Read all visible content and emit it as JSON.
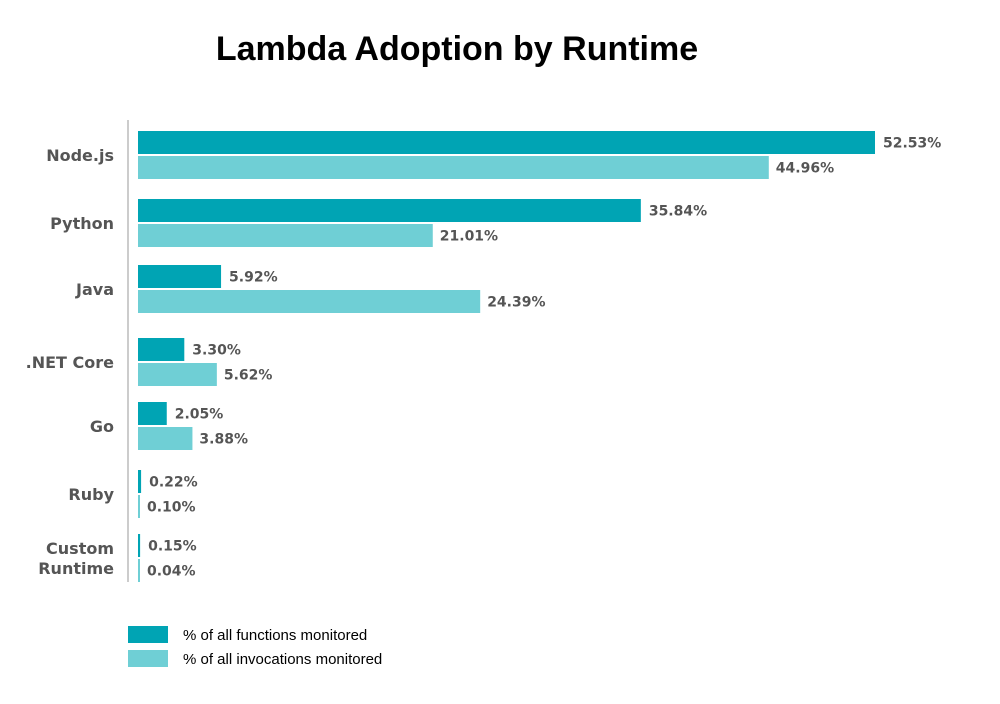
{
  "chart_data": {
    "type": "bar",
    "orientation": "horizontal",
    "title": "Lambda Adoption by Runtime",
    "categories": [
      "Node.js",
      "Python",
      "Java",
      ".NET Core",
      "Go",
      "Ruby",
      "Custom Runtime"
    ],
    "series": [
      {
        "name": "% of all functions monitored",
        "color": "#00a4b4",
        "values": [
          52.53,
          35.84,
          5.92,
          3.3,
          2.05,
          0.22,
          0.15
        ],
        "labels": [
          "52.53%",
          "35.84%",
          "5.92%",
          "3.30%",
          "2.05%",
          "0.22%",
          "0.15%"
        ]
      },
      {
        "name": "% of all invocations monitored",
        "color": "#6fcfd5",
        "values": [
          44.96,
          21.01,
          24.39,
          5.62,
          3.88,
          0.1,
          0.04
        ],
        "labels": [
          "44.96%",
          "21.01%",
          "24.39%",
          "5.62%",
          "3.88%",
          "0.10%",
          "0.04%"
        ]
      }
    ],
    "xlim": [
      0,
      52.53
    ],
    "grid": false,
    "legend_position": "bottom-left",
    "axis_color": "#cccccc"
  }
}
